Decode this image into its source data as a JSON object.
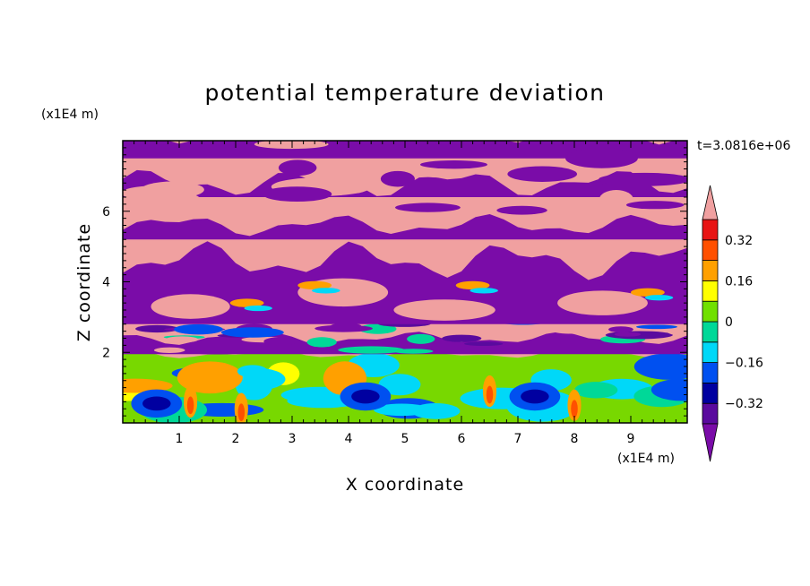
{
  "chart_data": {
    "type": "heatmap",
    "title": "potential temperature deviation",
    "xlabel": "X coordinate",
    "ylabel": "Z coordinate",
    "x_unit": "(x1E4 m)",
    "y_unit": "(x1E4 m)",
    "time_label": "t=3.0816e+06",
    "xlim": [
      0,
      10
    ],
    "ylim": [
      0,
      8
    ],
    "x_ticks": [
      "1",
      "2",
      "3",
      "4",
      "5",
      "6",
      "7",
      "8",
      "9"
    ],
    "y_ticks": [
      "2",
      "4",
      "6"
    ],
    "colorbar": {
      "levels": [
        -0.4,
        -0.32,
        -0.24,
        -0.16,
        -0.08,
        0,
        0.08,
        0.16,
        0.24,
        0.32,
        0.4
      ],
      "tick_labels": [
        "0.32",
        "0.16",
        "0",
        "−0.16",
        "−0.32"
      ],
      "tick_values": [
        0.32,
        0.16,
        0,
        -0.16,
        -0.32
      ],
      "colors_low_to_high": [
        "#5a0a9e",
        "#0000a0",
        "#0050f0",
        "#00d8f8",
        "#00d898",
        "#70e000",
        "#ffff00",
        "#ffa000",
        "#ff5000",
        "#e81414"
      ],
      "under_color": "#7a0ca8",
      "over_color": "#f0a0a0",
      "extend": "both"
    },
    "background_colors": {
      "pink": "#f0a0a0",
      "purple": "#7a0ca8",
      "bottom_green": "#78d800",
      "cyan": "#00e0f0"
    }
  }
}
